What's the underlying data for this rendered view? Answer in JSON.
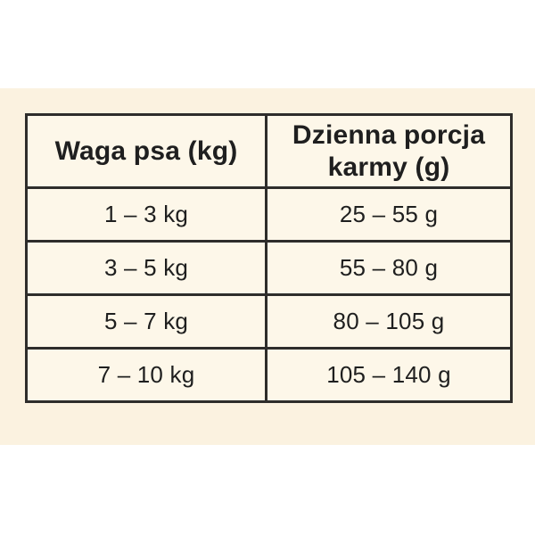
{
  "chart_data": {
    "type": "table",
    "title": "",
    "columns": [
      "Waga psa (kg)",
      "Dzienna porcja karmy (g)"
    ],
    "rows": [
      [
        "1 – 3 kg",
        "25 – 55 g"
      ],
      [
        "3 – 5 kg",
        "55 – 80 g"
      ],
      [
        "5 – 7 kg",
        "80 – 105 g"
      ],
      [
        "7 – 10 kg",
        "105 – 140 g"
      ]
    ]
  },
  "colors": {
    "page_background": "#FFFFFF",
    "band_background": "#FBF2E0",
    "cell_background": "#FDF7E9",
    "border": "#2E2D2B",
    "text": "#1F1F1F"
  }
}
